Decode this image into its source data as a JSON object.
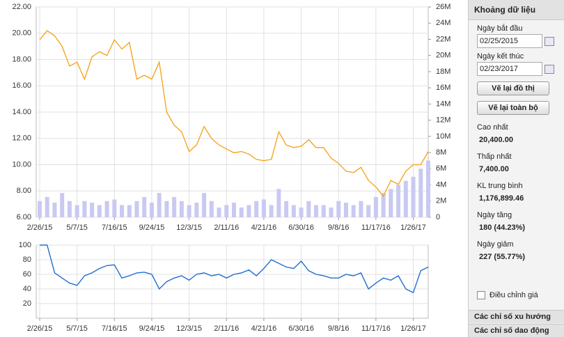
{
  "chart_data": [
    {
      "type": "line",
      "x": [
        "2/26/15",
        "3/12/15",
        "3/26/15",
        "4/9/15",
        "4/23/15",
        "5/7/15",
        "5/21/15",
        "6/4/15",
        "6/18/15",
        "7/2/15",
        "7/16/15",
        "7/30/15",
        "8/13/15",
        "8/27/15",
        "9/10/15",
        "9/24/15",
        "10/8/15",
        "10/22/15",
        "11/5/15",
        "11/19/15",
        "12/3/15",
        "12/17/15",
        "12/31/15",
        "1/14/16",
        "1/28/16",
        "2/11/16",
        "2/25/16",
        "3/10/16",
        "3/24/16",
        "4/7/16",
        "4/21/16",
        "5/5/16",
        "5/19/16",
        "6/2/16",
        "6/16/16",
        "6/30/16",
        "7/14/16",
        "7/28/16",
        "8/11/16",
        "8/25/16",
        "9/8/16",
        "9/22/16",
        "10/6/16",
        "10/20/16",
        "11/3/16",
        "11/17/16",
        "12/1/16",
        "12/15/16",
        "12/29/16",
        "1/12/17",
        "1/26/17",
        "2/9/17",
        "2/23/17"
      ],
      "xlim": [
        "2/26/15",
        "2/23/17"
      ],
      "xticks": [
        "2/26/15",
        "5/7/15",
        "7/16/15",
        "9/24/15",
        "12/3/15",
        "2/11/16",
        "4/21/16",
        "6/30/16",
        "9/8/16",
        "11/17/16",
        "1/26/17"
      ],
      "ylim": [
        6,
        22
      ],
      "yticks": [
        {
          "value": 6,
          "label": "6.00"
        },
        {
          "value": 8,
          "label": "8.00"
        },
        {
          "value": 10,
          "label": "10.00"
        },
        {
          "value": 12,
          "label": "12.00"
        },
        {
          "value": 14,
          "label": "14.00"
        },
        {
          "value": 16,
          "label": "16.00"
        },
        {
          "value": 18,
          "label": "18.00"
        },
        {
          "value": 20,
          "label": "20.00"
        },
        {
          "value": 22,
          "label": "22.00"
        }
      ],
      "y2lim": [
        0,
        26000000
      ],
      "y2ticks": [
        0,
        {
          "value": 2000000,
          "label": "2M"
        },
        {
          "value": 4000000,
          "label": "4M"
        },
        {
          "value": 6000000,
          "label": "6M"
        },
        {
          "value": 8000000,
          "label": "8M"
        },
        {
          "value": 10000000,
          "label": "10M"
        },
        {
          "value": 12000000,
          "label": "12M"
        },
        {
          "value": 14000000,
          "label": "14M"
        },
        {
          "value": 16000000,
          "label": "16M"
        },
        {
          "value": 18000000,
          "label": "18M"
        },
        {
          "value": 20000000,
          "label": "20M"
        },
        {
          "value": 22000000,
          "label": "22M"
        },
        {
          "value": 24000000,
          "label": "24M"
        },
        {
          "value": 26000000,
          "label": "26M"
        }
      ],
      "grid": true,
      "series": [
        {
          "type": "bar",
          "axis": "y2",
          "color": "#c9c9f2",
          "values": [
            2000000,
            2500000,
            1800000,
            3000000,
            2000000,
            1500000,
            2000000,
            1800000,
            1500000,
            2000000,
            2200000,
            1500000,
            1500000,
            2000000,
            2500000,
            1800000,
            3000000,
            2000000,
            2500000,
            2000000,
            1500000,
            1800000,
            3000000,
            2000000,
            1200000,
            1500000,
            1800000,
            1200000,
            1500000,
            2000000,
            2200000,
            1500000,
            3500000,
            2000000,
            1500000,
            1200000,
            2000000,
            1500000,
            1500000,
            1200000,
            2000000,
            1800000,
            1500000,
            2000000,
            1500000,
            2500000,
            3000000,
            3500000,
            4000000,
            4500000,
            5000000,
            6000000,
            7000000
          ]
        },
        {
          "type": "line",
          "color": "#f5a623",
          "values": [
            19.5,
            20.2,
            19.8,
            19.0,
            17.5,
            17.8,
            16.5,
            18.2,
            18.6,
            18.3,
            19.5,
            18.8,
            19.3,
            16.5,
            16.8,
            16.5,
            17.8,
            14.0,
            13.0,
            12.5,
            11.0,
            11.5,
            12.9,
            12.0,
            11.5,
            11.2,
            10.9,
            11.0,
            10.8,
            10.4,
            10.3,
            10.4,
            12.5,
            11.5,
            11.3,
            11.4,
            11.9,
            11.3,
            11.3,
            10.5,
            10.1,
            9.5,
            9.4,
            9.8,
            8.8,
            8.3,
            7.6,
            8.8,
            8.5,
            9.5,
            10.0,
            10.0,
            11.0
          ]
        }
      ]
    },
    {
      "type": "line",
      "x": [
        "2/26/15",
        "3/12/15",
        "3/26/15",
        "4/9/15",
        "4/23/15",
        "5/7/15",
        "5/21/15",
        "6/4/15",
        "6/18/15",
        "7/2/15",
        "7/16/15",
        "7/30/15",
        "8/13/15",
        "8/27/15",
        "9/10/15",
        "9/24/15",
        "10/8/15",
        "10/22/15",
        "11/5/15",
        "11/19/15",
        "12/3/15",
        "12/17/15",
        "12/31/15",
        "1/14/16",
        "1/28/16",
        "2/11/16",
        "2/25/16",
        "3/10/16",
        "3/24/16",
        "4/7/16",
        "4/21/16",
        "5/5/16",
        "5/19/16",
        "6/2/16",
        "6/16/16",
        "6/30/16",
        "7/14/16",
        "7/28/16",
        "8/11/16",
        "8/25/16",
        "9/8/16",
        "9/22/16",
        "10/6/16",
        "10/20/16",
        "11/3/16",
        "11/17/16",
        "12/1/16",
        "12/15/16",
        "12/29/16",
        "1/12/17",
        "1/26/17",
        "2/9/17",
        "2/23/17"
      ],
      "xlim": [
        "2/26/15",
        "2/23/17"
      ],
      "xticks": [
        "2/26/15",
        "5/7/15",
        "7/16/15",
        "9/24/15",
        "12/3/15",
        "2/11/16",
        "4/21/16",
        "6/30/16",
        "9/8/16",
        "11/17/16",
        "1/26/17"
      ],
      "ylim": [
        0,
        100
      ],
      "yticks": [
        20,
        40,
        60,
        80,
        100
      ],
      "grid": true,
      "series": [
        {
          "type": "line",
          "color": "#1f6fd1",
          "values": [
            100,
            100,
            62,
            55,
            48,
            45,
            58,
            62,
            68,
            72,
            73,
            55,
            58,
            62,
            63,
            60,
            40,
            50,
            55,
            58,
            52,
            60,
            62,
            58,
            60,
            55,
            60,
            62,
            66,
            58,
            68,
            80,
            75,
            70,
            68,
            78,
            65,
            60,
            58,
            55,
            55,
            60,
            58,
            62,
            40,
            48,
            55,
            52,
            58,
            40,
            35,
            65,
            70
          ]
        }
      ]
    }
  ],
  "panel": {
    "title": "Khoảng dữ liệu",
    "start_label": "Ngày bắt đầu",
    "start_value": "02/25/2015",
    "end_label": "Ngày kết thúc",
    "end_value": "02/23/2017",
    "redraw": "Vẽ lại đồ thị",
    "redraw_all": "Vẽ lại toàn bộ",
    "stats": [
      {
        "label": "Cao nhất",
        "value": "20,400.00"
      },
      {
        "label": "Thấp nhất",
        "value": "7,400.00"
      },
      {
        "label": "KL trung bình",
        "value": "1,176,899.46"
      },
      {
        "label": "Ngày tăng",
        "value": "180 (44.23%)"
      },
      {
        "label": "Ngày giảm",
        "value": "227 (55.77%)"
      }
    ],
    "adjust": "Điều chỉnh giá",
    "sections": [
      "Các chỉ số xu hướng",
      "Các chỉ số dao động"
    ]
  }
}
